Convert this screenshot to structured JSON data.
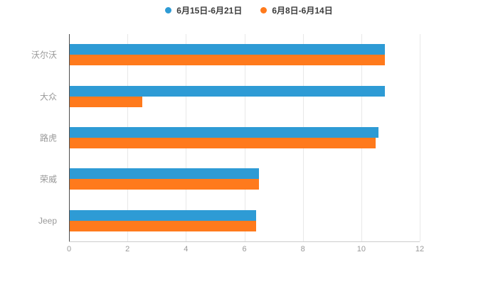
{
  "chart_data": {
    "type": "bar",
    "orientation": "horizontal",
    "title": "",
    "xlabel": "",
    "ylabel": "",
    "categories": [
      "沃尔沃",
      "大众",
      "路虎",
      "荣威",
      "Jeep"
    ],
    "series": [
      {
        "name": "6月15日-6月21日",
        "color": "#2E9BD5",
        "values": [
          10.8,
          10.8,
          10.6,
          6.5,
          6.4
        ]
      },
      {
        "name": "6月8日-6月14日",
        "color": "#FF7A1C",
        "values": [
          10.8,
          2.5,
          10.5,
          6.5,
          6.4
        ]
      }
    ],
    "xlim": [
      0,
      12
    ],
    "xticks": [
      0,
      2,
      4,
      6,
      8,
      10,
      12
    ],
    "grid": true,
    "legend_position": "top",
    "background": "#ffffff",
    "axis_label_color": "#999999",
    "gridline_color": "#e8e8e8"
  }
}
